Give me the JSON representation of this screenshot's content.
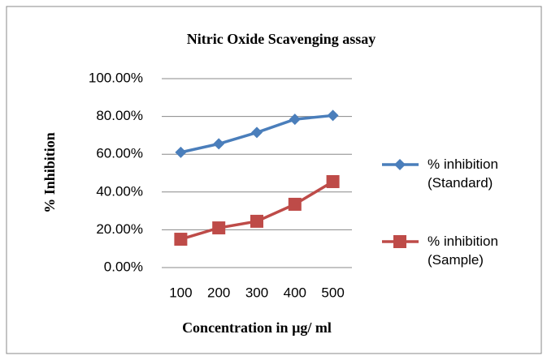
{
  "chart_data": {
    "type": "line",
    "title": "Nitric Oxide Scavenging assay",
    "x_label": "Concentration in µg/ ml",
    "y_label": "% Inhibition",
    "categories": [
      "100",
      "200",
      "300",
      "400",
      "500"
    ],
    "series": [
      {
        "name": "% inhibition (Standard)",
        "color": "#4a7ebb",
        "marker": "diamond",
        "values": [
          61,
          65.5,
          71.5,
          78.5,
          80.5
        ]
      },
      {
        "name": "% inhibition (Sample)",
        "color": "#be4b48",
        "marker": "square",
        "values": [
          15,
          21,
          24.5,
          33.5,
          45.5
        ]
      }
    ],
    "ylim": [
      0,
      100
    ],
    "yticks": [
      {
        "value": 0,
        "label": "0.00%"
      },
      {
        "value": 20,
        "label": "20.00%"
      },
      {
        "value": 40,
        "label": "40.00%"
      },
      {
        "value": 60,
        "label": "60.00%"
      },
      {
        "value": 80,
        "label": "80.00%"
      },
      {
        "value": 100,
        "label": "100.00%"
      }
    ],
    "grid": true,
    "legend": "right"
  }
}
